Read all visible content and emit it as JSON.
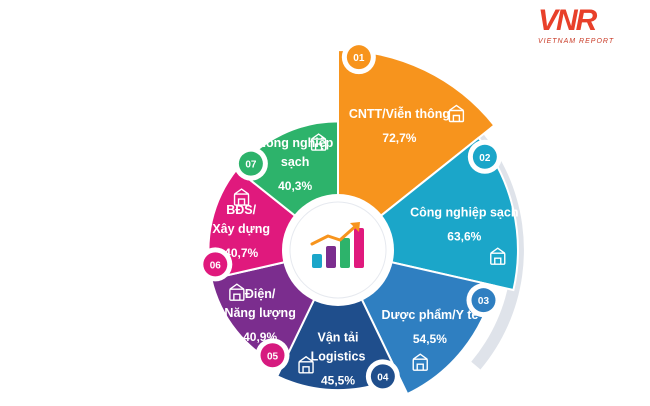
{
  "brand": {
    "mark": "VNR",
    "name": "VIETNAM REPORT"
  },
  "chart_data": {
    "type": "pie",
    "unit": "%",
    "slices": [
      {
        "num": "01",
        "label": [
          "CNTT/Viễn thông"
        ],
        "value_text": "72,7%",
        "value": 72.7,
        "color": "#f7941d",
        "badge": "#f7941d",
        "icon": "circuit-chip-icon"
      },
      {
        "num": "02",
        "label": [
          "Công nghiệp sạch"
        ],
        "value_text": "63,6%",
        "value": 63.6,
        "color": "#1ba6c9",
        "badge": "#1ba6c9",
        "icon": "factory-icon"
      },
      {
        "num": "03",
        "label": [
          "Dược phẩm/Y tế"
        ],
        "value_text": "54,5%",
        "value": 54.5,
        "color": "#2f7fc1",
        "badge": "#2f7fc1",
        "icon": "pharmacy-icon"
      },
      {
        "num": "04",
        "label": [
          "Vận tải",
          "Logistics"
        ],
        "value_text": "45,5%",
        "value": 45.5,
        "color": "#1f4e8c",
        "badge": "#1f4e8c",
        "icon": "globe-truck-icon"
      },
      {
        "num": "05",
        "label": [
          "Điện/",
          "Năng lượng"
        ],
        "value_text": "40,9%",
        "value": 40.9,
        "color": "#7b2d8e",
        "badge": "#d61a7f",
        "icon": "energy-icon"
      },
      {
        "num": "06",
        "label": [
          "BĐS/",
          "Xây dựng"
        ],
        "value_text": "40,7%",
        "value": 40.7,
        "color": "#e0197d",
        "badge": "#e0197d",
        "icon": "building-icon"
      },
      {
        "num": "07",
        "label": [
          "Nông nghiệp",
          "sạch"
        ],
        "value_text": "40,3%",
        "value": 40.3,
        "color": "#2db36b",
        "badge": "#2db36b",
        "icon": "greenhouse-icon"
      }
    ],
    "center_icon": "growth-bar-chart-icon"
  }
}
